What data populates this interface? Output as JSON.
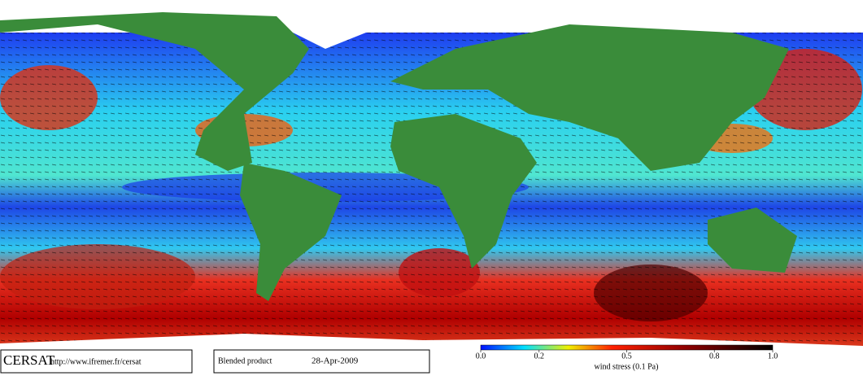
{
  "logo": {
    "name": "CERSAT",
    "url": "http://www.ifremer.fr/cersat"
  },
  "product": {
    "name": "Blended product",
    "date": "28-Apr-2009"
  },
  "colorbar": {
    "label": "wind stress (0.1 Pa)",
    "lim": [
      0,
      1
    ],
    "ticks": [
      {
        "value": 0,
        "label": "0.0"
      },
      0.2,
      0.5,
      0.8,
      {
        "value": 1,
        "label": "1.0"
      }
    ]
  }
}
